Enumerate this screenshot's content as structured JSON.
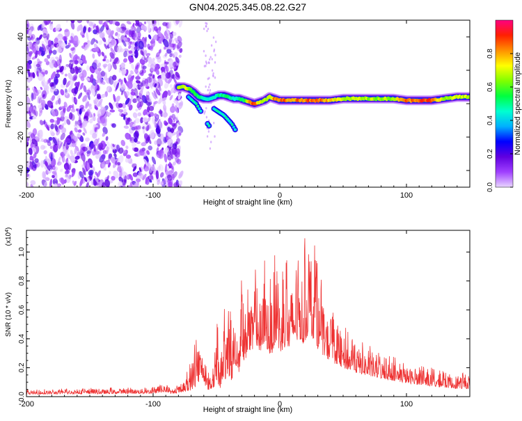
{
  "figure_title": "GN04.2025.345.08.22.G27",
  "chart_data": [
    {
      "type": "heatmap",
      "title": "GN04.2025.345.08.22.G27",
      "xlabel": "Height of straight line (km)",
      "ylabel": "Frequency (Hz)",
      "xlim": [
        -200,
        150
      ],
      "ylim": [
        -50,
        50
      ],
      "xticks": [
        -200,
        -100,
        0,
        100
      ],
      "xtick_labels": [
        "-200",
        "-100",
        "0",
        "100"
      ],
      "yticks": [
        -40,
        -20,
        0,
        20,
        40
      ],
      "ytick_labels": [
        "-40",
        "-20",
        "0",
        "20",
        "40"
      ],
      "colorbar": {
        "label": "Normalized spectral amplitude",
        "range": [
          0,
          1
        ],
        "ticks": [
          0.0,
          0.2,
          0.4,
          0.6,
          0.8
        ],
        "tick_labels": [
          "0.0",
          "0.2",
          "0.4",
          "0.6",
          "0.8"
        ],
        "colors": [
          "#e9d6ff",
          "#a040ff",
          "#6000e0",
          "#0000ff",
          "#00b0ff",
          "#00ffd0",
          "#00ff40",
          "#80ff00",
          "#ffff00",
          "#ff9000",
          "#ff2000",
          "#ff0080"
        ]
      },
      "noise_region_x": [
        -200,
        -78
      ],
      "ridge": {
        "x": [
          -80,
          -76,
          -72,
          -68,
          -64,
          -60,
          -56,
          -52,
          -48,
          -44,
          -40,
          -36,
          -32,
          -28,
          -24,
          -20,
          -16,
          -12,
          -8,
          -4,
          0,
          10,
          20,
          30,
          40,
          50,
          60,
          70,
          80,
          90,
          100,
          110,
          120,
          130,
          140,
          150
        ],
        "y": [
          10,
          10,
          9,
          7,
          4,
          3,
          3,
          4,
          5,
          5,
          4,
          3,
          3,
          2,
          1,
          0,
          1,
          2,
          4,
          3,
          2,
          2,
          2,
          2,
          2,
          3,
          3,
          3,
          3,
          3,
          2,
          2,
          2,
          3,
          4,
          4
        ],
        "amplitude": [
          0.7,
          0.75,
          0.72,
          0.6,
          0.55,
          0.5,
          0.48,
          0.5,
          0.52,
          0.55,
          0.55,
          0.5,
          0.55,
          0.6,
          0.85,
          0.95,
          0.8,
          0.7,
          0.75,
          0.9,
          0.95,
          0.9,
          0.92,
          0.95,
          0.8,
          0.75,
          0.72,
          0.72,
          0.7,
          0.72,
          0.9,
          0.95,
          0.92,
          0.7,
          0.75,
          0.72
        ]
      },
      "branches": [
        {
          "x": [
            -72,
            -66,
            -62
          ],
          "y": [
            4,
            0,
            -5
          ]
        },
        {
          "x": [
            -52,
            -44,
            -38,
            -34
          ],
          "y": [
            -3,
            -7,
            -12,
            -17
          ]
        },
        {
          "x": [
            -57,
            -55
          ],
          "y": [
            -12,
            -14
          ]
        }
      ]
    },
    {
      "type": "line",
      "title": "",
      "xlabel": "Height of straight line (km)",
      "ylabel": "SNR (10 * v/v)",
      "scale_note": "(x10",
      "scale_exponent": "4",
      "xlim": [
        -200,
        150
      ],
      "ylim": [
        0,
        11500
      ],
      "xticks": [
        -200,
        -100,
        0,
        100
      ],
      "xtick_labels": [
        "-200",
        "-100",
        "0",
        "100"
      ],
      "yticks": [
        0,
        2000,
        4000,
        6000,
        8000,
        10000
      ],
      "ytick_labels": [
        "0.0",
        "0.2",
        "0.4",
        "0.6",
        "0.8",
        "1.0"
      ],
      "color": "#ee3333",
      "envelope": {
        "x": [
          -200,
          -150,
          -100,
          -90,
          -85,
          -80,
          -75,
          -70,
          -65,
          -62,
          -60,
          -58,
          -55,
          -52,
          -50,
          -47,
          -45,
          -42,
          -40,
          -38,
          -35,
          -32,
          -30,
          -28,
          -25,
          -22,
          -20,
          -17,
          -15,
          -12,
          -10,
          -7,
          -5,
          -3,
          0,
          3,
          5,
          8,
          10,
          13,
          15,
          18,
          20,
          23,
          25,
          28,
          30,
          33,
          35,
          40,
          45,
          50,
          55,
          60,
          65,
          70,
          80,
          90,
          100,
          110,
          120,
          130,
          140,
          150
        ],
        "base": [
          300,
          350,
          400,
          600,
          300,
          500,
          600,
          800,
          1500,
          2500,
          2000,
          1000,
          800,
          1200,
          2000,
          1000,
          2500,
          2000,
          2500,
          2000,
          4000,
          3000,
          6000,
          4000,
          6000,
          5000,
          7000,
          6000,
          5000,
          7000,
          6000,
          5000,
          6000,
          7000,
          5500,
          6000,
          6500,
          5500,
          7000,
          6500,
          7500,
          6500,
          7000,
          8000,
          7500,
          7000,
          6000,
          5500,
          5000,
          4500,
          4000,
          3600,
          3300,
          3000,
          2800,
          2600,
          2300,
          2000,
          1700,
          1500,
          1300,
          1150,
          1000,
          1000
        ],
        "peak": [
          500,
          600,
          700,
          900,
          500,
          900,
          1200,
          3000,
          5500,
          4000,
          3500,
          2000,
          1500,
          2500,
          6000,
          2500,
          7500,
          5000,
          8200,
          4500,
          7000,
          5500,
          8500,
          7000,
          9000,
          7500,
          9500,
          8500,
          8000,
          9500,
          9000,
          8000,
          11000,
          10000,
          8500,
          9000,
          10500,
          8500,
          10000,
          10500,
          10000,
          10800,
          11000,
          11200,
          11500,
          10500,
          9500,
          8000,
          7000,
          6500,
          5500,
          5000,
          4500,
          4200,
          4000,
          3600,
          3000,
          2800,
          2500,
          2200,
          2000,
          1800,
          1700,
          1600
        ]
      }
    }
  ]
}
